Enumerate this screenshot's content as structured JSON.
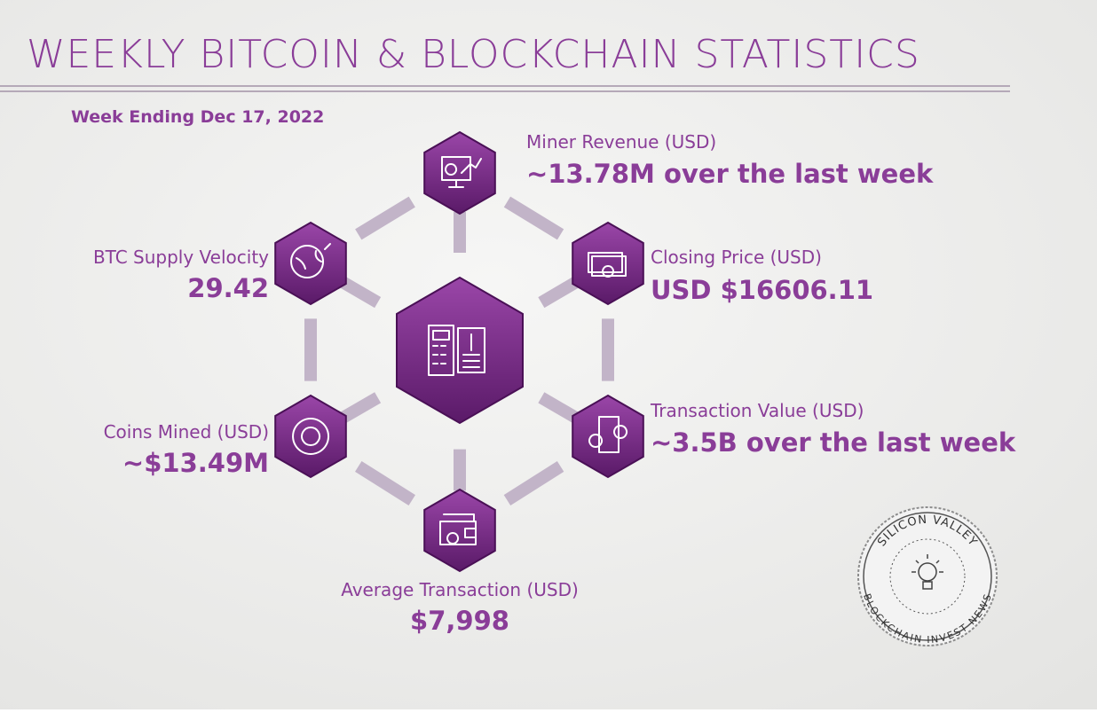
{
  "header": {
    "title": "WEEKLY BITCOIN & BLOCKCHAIN STATISTICS",
    "subtitle": "Week Ending Dec 17, 2022"
  },
  "stats": [
    {
      "label": "Miner Revenue (USD)",
      "value": "~13.78M over the last week"
    },
    {
      "label": "Closing Price (USD)",
      "value": "USD $16606.11"
    },
    {
      "label": "Transaction Value (USD)",
      "value": "~3.5B over the last week"
    },
    {
      "label": "Average Transaction (USD)",
      "value": "$7,998"
    },
    {
      "label": "Coins Mined (USD)",
      "value": "~$13.49M"
    },
    {
      "label": "BTC Supply Velocity",
      "value": "29.42"
    }
  ],
  "badge": {
    "top": "SILICON VALLEY",
    "bottom": "BLOCKCHAIN INVEST NEWS"
  }
}
